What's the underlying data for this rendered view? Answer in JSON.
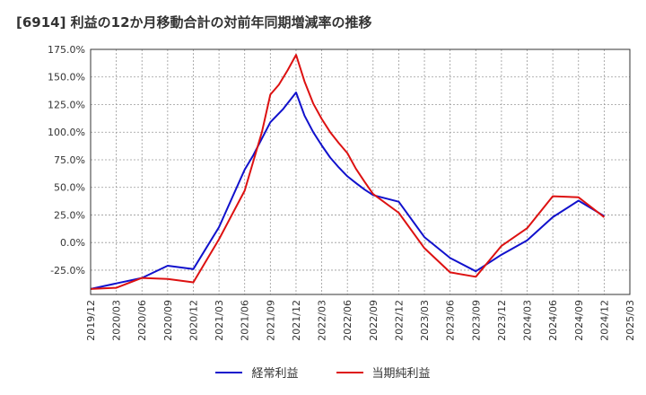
{
  "chart_data": {
    "type": "line",
    "title": "[6914]  利益の12か月移動合計の対前年同期増減率の推移",
    "xlabel": "",
    "ylabel": "",
    "ylim": [
      -47,
      175
    ],
    "yticks": [
      -25,
      0,
      25,
      50,
      75,
      100,
      125,
      150,
      175
    ],
    "ytick_labels": [
      "-25.0%",
      "0.0%",
      "25.0%",
      "50.0%",
      "75.0%",
      "100.0%",
      "125.0%",
      "150.0%",
      "175.0%"
    ],
    "x_ticks": [
      "2019/12",
      "2020/03",
      "2020/06",
      "2020/09",
      "2020/12",
      "2021/03",
      "2021/06",
      "2021/09",
      "2021/12",
      "2022/03",
      "2022/06",
      "2022/09",
      "2022/12",
      "2023/03",
      "2023/06",
      "2023/09",
      "2023/12",
      "2024/03",
      "2024/06",
      "2024/09",
      "2024/12",
      "2025/03"
    ],
    "grid": true,
    "legend_position": "bottom",
    "series": [
      {
        "name": "経常利益",
        "color": "#1111cc",
        "values": [
          [
            0,
            -42
          ],
          [
            1,
            -37
          ],
          [
            2,
            -32
          ],
          [
            3,
            -21
          ],
          [
            4,
            -24
          ],
          [
            5,
            14
          ],
          [
            6,
            66
          ],
          [
            6.33,
            79
          ],
          [
            7,
            109
          ],
          [
            7.5,
            121
          ],
          [
            8,
            136
          ],
          [
            8.33,
            115
          ],
          [
            8.67,
            100
          ],
          [
            9,
            88
          ],
          [
            9.33,
            77
          ],
          [
            9.67,
            68
          ],
          [
            10,
            60
          ],
          [
            10.33,
            54
          ],
          [
            10.67,
            48
          ],
          [
            11,
            43
          ],
          [
            11.33,
            41
          ],
          [
            12,
            37
          ],
          [
            13,
            5
          ],
          [
            14,
            -14
          ],
          [
            15,
            -26
          ],
          [
            16,
            -11
          ],
          [
            17,
            2
          ],
          [
            18,
            23
          ],
          [
            19,
            38
          ],
          [
            20,
            24
          ]
        ]
      },
      {
        "name": "当期純利益",
        "color": "#dd1111",
        "values": [
          [
            0,
            -42
          ],
          [
            1,
            -41
          ],
          [
            2,
            -32
          ],
          [
            3,
            -33
          ],
          [
            4,
            -36
          ],
          [
            5,
            3
          ],
          [
            6,
            47
          ],
          [
            6.67,
            100
          ],
          [
            7,
            134
          ],
          [
            7.33,
            143
          ],
          [
            7.67,
            156
          ],
          [
            8,
            170
          ],
          [
            8.33,
            146
          ],
          [
            8.67,
            126
          ],
          [
            9,
            112
          ],
          [
            9.33,
            100
          ],
          [
            9.67,
            90
          ],
          [
            10,
            81
          ],
          [
            10.33,
            67
          ],
          [
            10.67,
            55
          ],
          [
            11,
            44
          ],
          [
            12,
            27
          ],
          [
            13,
            -5
          ],
          [
            14,
            -27
          ],
          [
            15,
            -31
          ],
          [
            16,
            -3
          ],
          [
            17,
            13
          ],
          [
            18,
            42
          ],
          [
            19,
            41
          ],
          [
            20,
            23
          ]
        ]
      }
    ]
  }
}
